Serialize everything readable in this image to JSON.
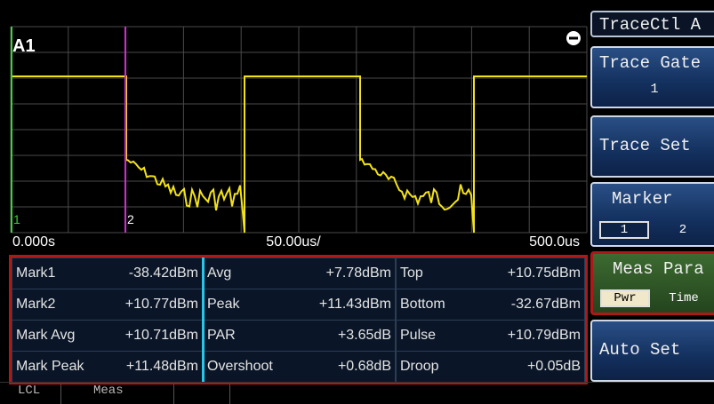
{
  "display": {
    "trace_label": "A1",
    "markers": [
      "1",
      "2"
    ],
    "x_start": "0.000s",
    "x_scale": "50.00us/",
    "x_end": "500.0us"
  },
  "measurements": [
    [
      {
        "label": "Mark1",
        "value": "-38.42dBm"
      },
      {
        "label": "Avg",
        "value": "+7.78dBm"
      },
      {
        "label": "Top",
        "value": "+10.75dBm"
      }
    ],
    [
      {
        "label": "Mark2",
        "value": "+10.77dBm"
      },
      {
        "label": "Peak",
        "value": "+11.43dBm"
      },
      {
        "label": "Bottom",
        "value": "-32.67dBm"
      }
    ],
    [
      {
        "label": "Mark Avg",
        "value": "+10.71dBm"
      },
      {
        "label": "PAR",
        "value": "+3.65dB"
      },
      {
        "label": "Pulse",
        "value": "+10.79dBm"
      }
    ],
    [
      {
        "label": "Mark Peak",
        "value": "+11.48dBm"
      },
      {
        "label": "Overshoot",
        "value": "+0.68dB"
      },
      {
        "label": "Droop",
        "value": "+0.05dB"
      }
    ]
  ],
  "softkeys": {
    "title": "TraceCtl A",
    "keys": [
      {
        "label": "Trace Gate",
        "sub": "1"
      },
      {
        "label": "Trace Set"
      },
      {
        "label": "Marker",
        "options": [
          "1",
          "2"
        ]
      },
      {
        "label": "Meas Para",
        "options": [
          "Pwr",
          "Time"
        ]
      },
      {
        "label": "Auto Set"
      }
    ]
  },
  "status": [
    "LCL",
    "Meas"
  ]
}
